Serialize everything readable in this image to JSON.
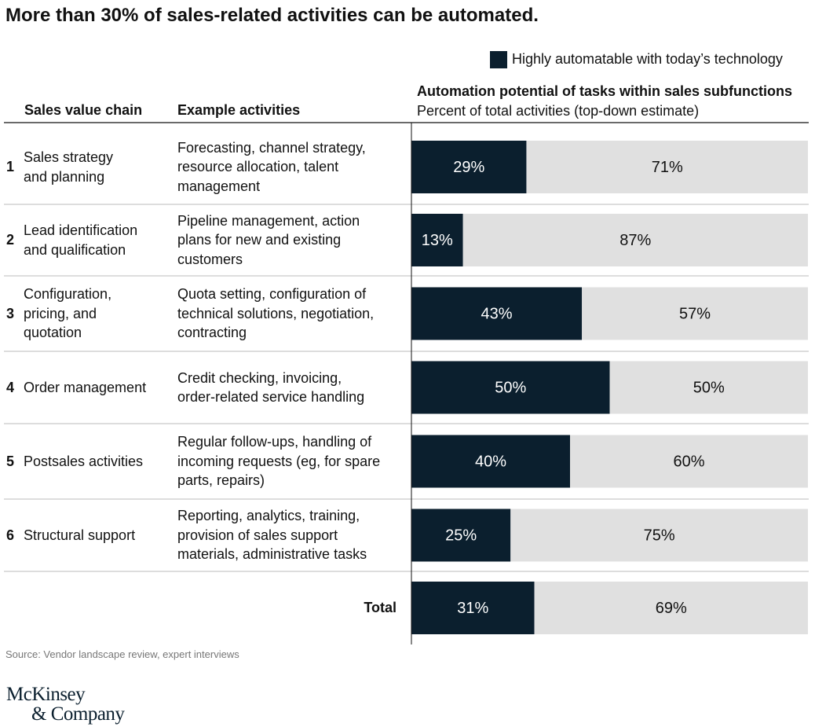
{
  "chart_data": {
    "type": "stacked_bar_table",
    "title": "More than 30% of sales-related activities can be automated.",
    "column_headers": [
      "Sales value chain",
      "Example activities"
    ],
    "chart_header": "Automation potential of tasks within sales subfunctions",
    "chart_subheader": "Percent of total activities (top-down estimate)",
    "row_numbers": [
      1,
      2,
      3,
      4,
      5,
      6,
      null
    ],
    "categories": [
      "Sales strategy\nand planning",
      "Lead identification\nand qualification",
      "Configuration,\npricing, and\nquotation",
      "Order management",
      "Postsales activities",
      "Structural support",
      "Total"
    ],
    "activities": [
      "Forecasting, channel strategy,\nresource allocation, talent\nmanagement",
      "Pipeline management, action\nplans for new and existing\ncustomers",
      "Quota setting, configuration of\ntechnical solutions, negotiation,\ncontracting",
      "Credit checking, invoicing,\norder-related service handling",
      "Regular follow-ups, handling of\nincoming requests (eg, for spare\nparts, repairs)",
      "Reporting, analytics, training,\nprovision of sales support\nmaterials, administrative tasks",
      null
    ],
    "series": [
      {
        "name": "Highly automatable with today’s technology",
        "color": "#0b1f2e",
        "label_color": "#ffffff",
        "values": [
          29,
          13,
          43,
          50,
          40,
          25,
          31
        ],
        "value_labels": [
          "29%",
          "13%",
          "43%",
          "50%",
          "40%",
          "25%",
          "31%"
        ]
      },
      {
        "color": "#e0e0e0",
        "label_color": "#111111",
        "values": [
          71,
          87,
          57,
          50,
          60,
          75,
          69
        ],
        "value_labels": [
          "71%",
          "87%",
          "57%",
          "50%",
          "60%",
          "75%",
          "69%"
        ]
      }
    ],
    "xlim": [
      0,
      100
    ],
    "source": "Source: Vendor landscape review, expert interviews",
    "logo": [
      "McKinsey",
      "& Company"
    ]
  }
}
